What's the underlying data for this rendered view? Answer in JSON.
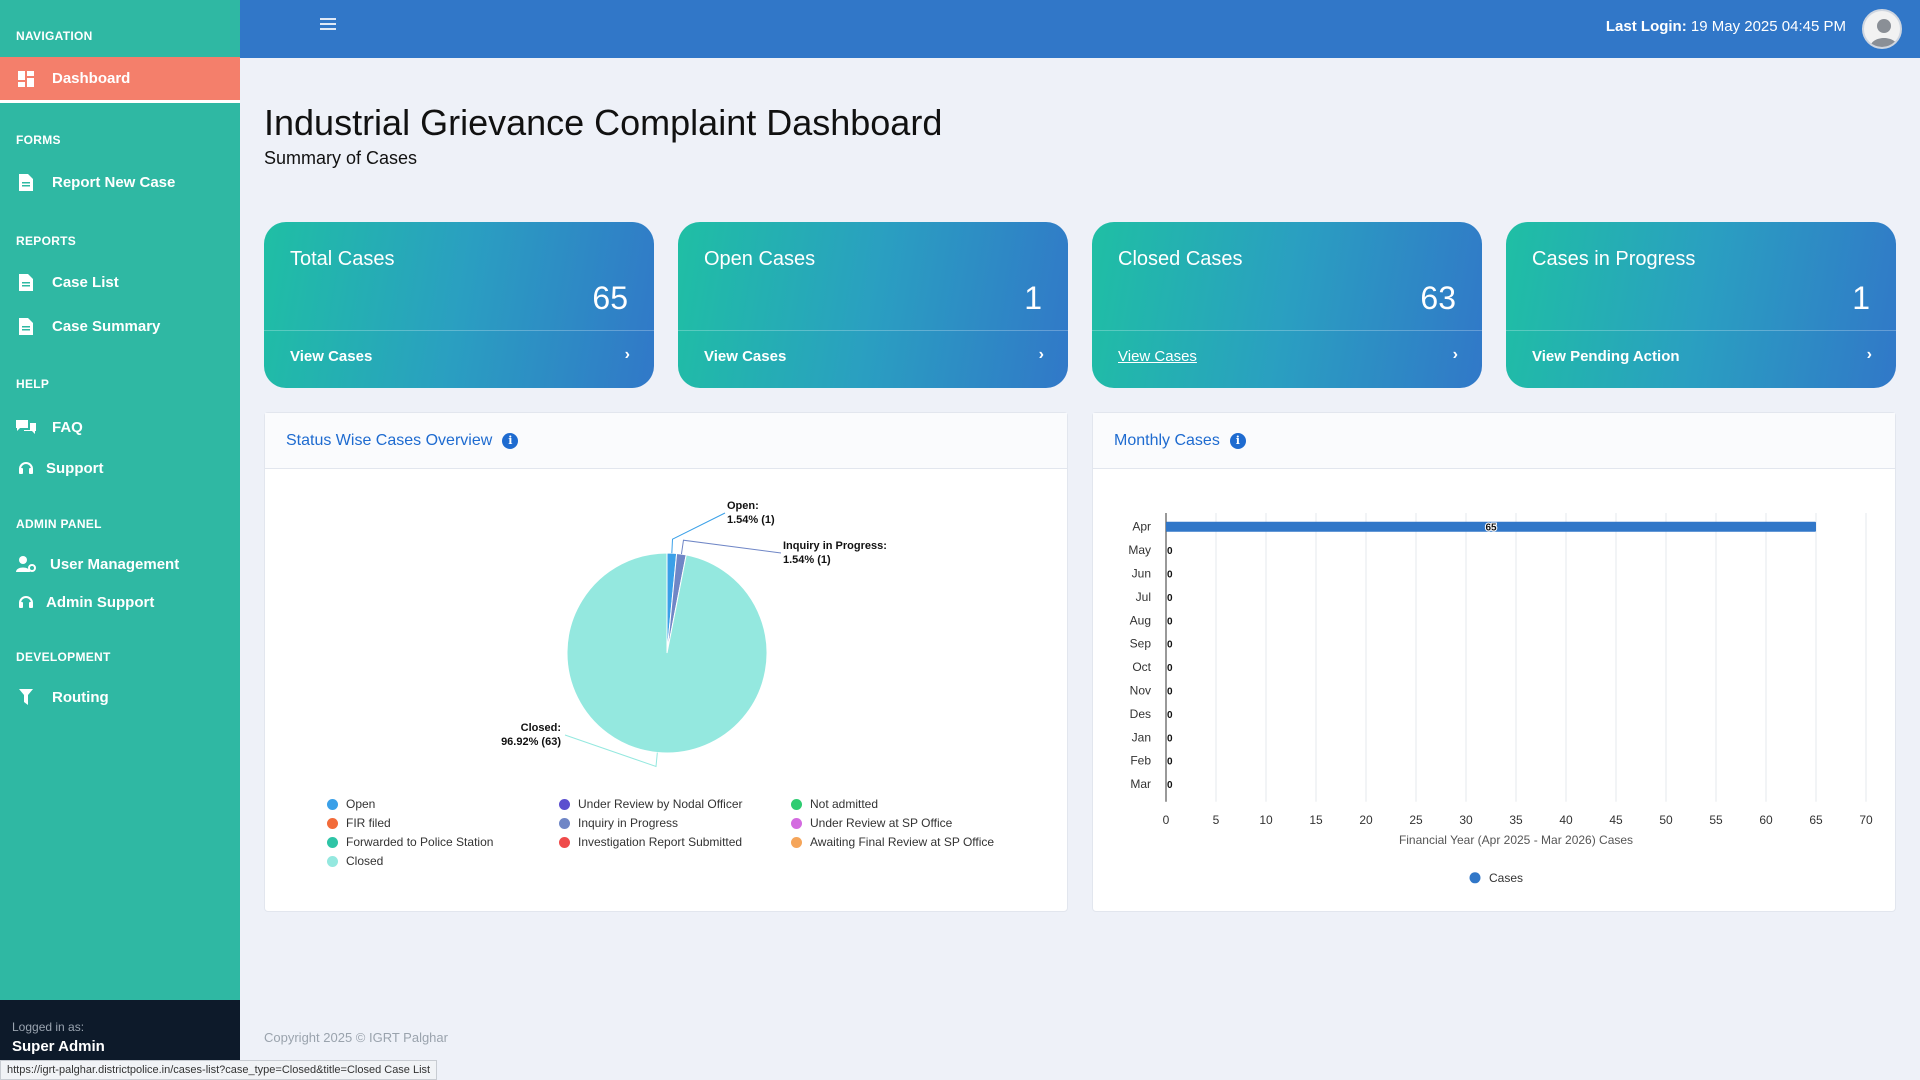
{
  "sidebar": {
    "headings": {
      "navigation": "NAVIGATION",
      "forms": "FORMS",
      "reports": "REPORTS",
      "help": "HELP",
      "admin": "ADMIN PANEL",
      "development": "DEVELOPMENT"
    },
    "items": {
      "dashboard": "Dashboard",
      "report_new_case": "Report New Case",
      "case_list": "Case List",
      "case_summary": "Case Summary",
      "faq": "FAQ",
      "support": "Support",
      "user_management": "User Management",
      "admin_support": "Admin Support",
      "routing": "Routing"
    },
    "footer": {
      "label": "Logged in as:",
      "user": "Super Admin"
    }
  },
  "topbar": {
    "last_login_label": "Last Login:",
    "last_login_value": "19 May 2025 04:45 PM"
  },
  "page": {
    "title": "Industrial Grievance Complaint Dashboard",
    "subtitle": "Summary of Cases"
  },
  "cards": [
    {
      "title": "Total Cases",
      "value": "65",
      "link": "View Cases"
    },
    {
      "title": "Open Cases",
      "value": "1",
      "link": "View Cases"
    },
    {
      "title": "Closed Cases",
      "value": "63",
      "link": "View Cases"
    },
    {
      "title": "Cases in Progress",
      "value": "1",
      "link": "View Pending Action"
    }
  ],
  "panels": {
    "status": {
      "title": "Status Wise Cases Overview"
    },
    "monthly": {
      "title": "Monthly Cases"
    }
  },
  "footer": {
    "copyright": "Copyright 2025 © IGRT Palghar"
  },
  "statusbar": {
    "url": "https://igrt-palghar.districtpolice.in/cases-list?case_type=Closed&title=Closed Case List"
  },
  "colors": {
    "sidebar": "#2fb8a3",
    "active": "#f47f6b",
    "topbar": "#3177c8",
    "accent": "#1e6bd0"
  },
  "chart_data": [
    {
      "type": "pie",
      "categories": [
        "Open",
        "Under Review by Nodal Officer",
        "Not admitted",
        "FIR filed",
        "Inquiry in Progress",
        "Under Review at SP Office",
        "Forwarded to Police Station",
        "Investigation Report Submitted",
        "Awaiting Final Review at SP Office",
        "Closed"
      ],
      "values": [
        1,
        0,
        0,
        0,
        1,
        0,
        0,
        0,
        0,
        63
      ],
      "colors": [
        "#3aa0e8",
        "#5b4fcf",
        "#2ecc71",
        "#f26b3a",
        "#6f86c6",
        "#d46be0",
        "#2ec4a6",
        "#ef4a4a",
        "#f5a55a",
        "#94e8df"
      ],
      "labels": [
        {
          "name": "Open:",
          "detail": "1.54% (1)"
        },
        {
          "name": "Inquiry in Progress:",
          "detail": "1.54% (1)"
        },
        {
          "name": "Closed:",
          "detail": "96.92% (63)"
        }
      ]
    },
    {
      "type": "bar",
      "orientation": "horizontal",
      "categories": [
        "Apr",
        "May",
        "Jun",
        "Jul",
        "Aug",
        "Sep",
        "Oct",
        "Nov",
        "Des",
        "Jan",
        "Feb",
        "Mar"
      ],
      "series": [
        {
          "name": "Cases",
          "values": [
            65,
            0,
            0,
            0,
            0,
            0,
            0,
            0,
            0,
            0,
            0,
            0
          ]
        }
      ],
      "xlabel": "Financial Year (Apr 2025 - Mar 2026) Cases",
      "xlim": [
        0,
        70
      ],
      "xticks": [
        0,
        5,
        10,
        15,
        20,
        25,
        30,
        35,
        40,
        45,
        50,
        55,
        60,
        65,
        70
      ],
      "grid": true,
      "legend": "bottom",
      "color": "#3177c8"
    }
  ]
}
